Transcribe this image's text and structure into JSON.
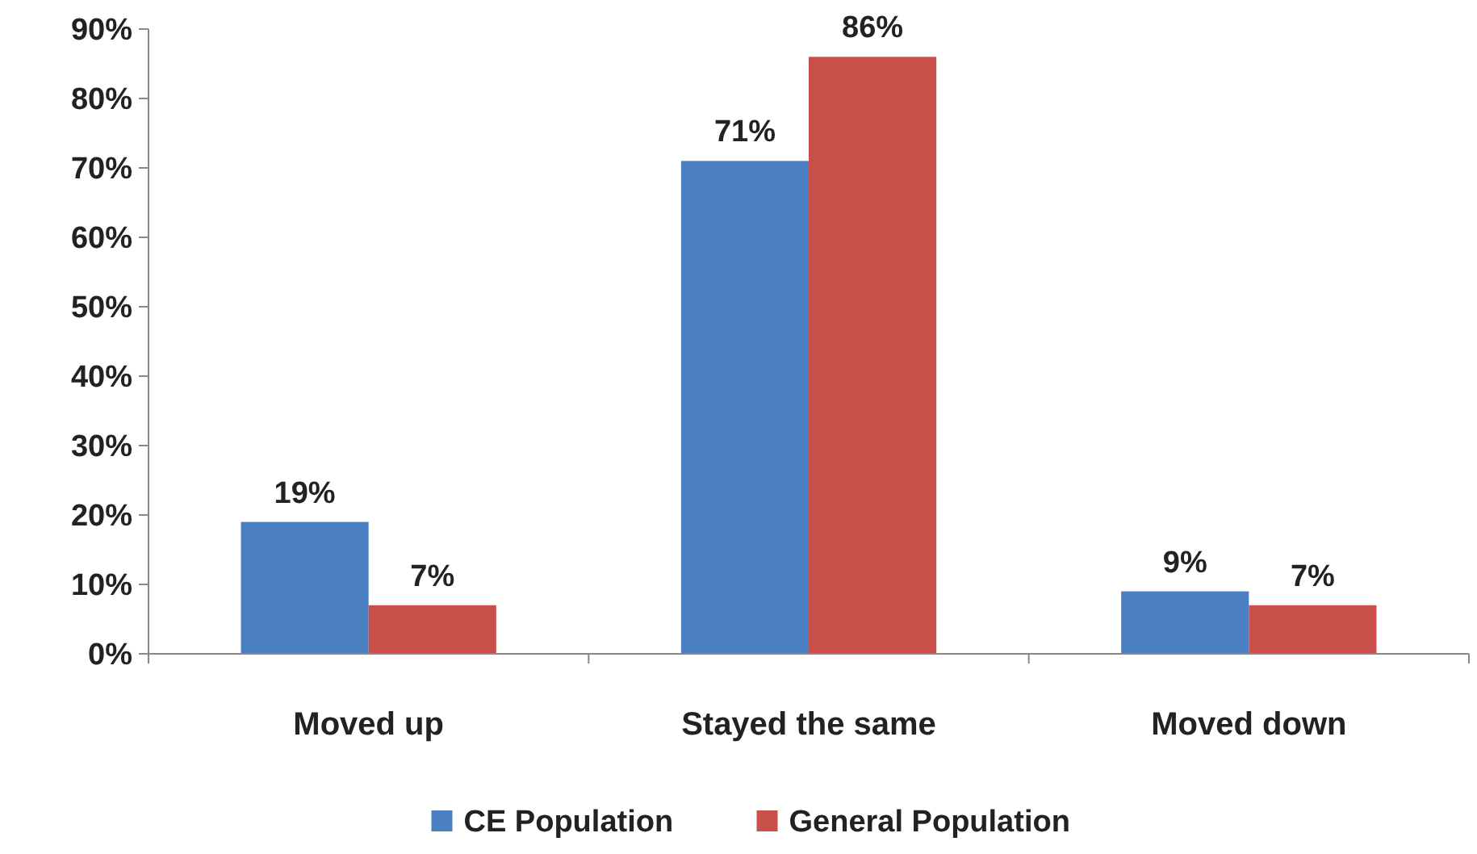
{
  "chart_data": {
    "type": "bar",
    "categories": [
      "Moved up",
      "Stayed the same",
      "Moved down"
    ],
    "series": [
      {
        "name": "CE Population",
        "color": "#4a7fc1",
        "values": [
          19,
          71,
          9
        ],
        "value_labels": [
          "19%",
          "71%",
          "9%"
        ]
      },
      {
        "name": "General Population",
        "color": "#c9504a",
        "values": [
          7,
          86,
          7
        ],
        "value_labels": [
          "7%",
          "86%",
          "7%"
        ]
      }
    ],
    "ylim": [
      0,
      90
    ],
    "yticks": [
      {
        "value": 0,
        "label": "0%"
      },
      {
        "value": 10,
        "label": "10%"
      },
      {
        "value": 20,
        "label": "20%"
      },
      {
        "value": 30,
        "label": "30%"
      },
      {
        "value": 40,
        "label": "40%"
      },
      {
        "value": 50,
        "label": "50%"
      },
      {
        "value": 60,
        "label": "60%"
      },
      {
        "value": 70,
        "label": "70%"
      },
      {
        "value": 80,
        "label": "80%"
      },
      {
        "value": 90,
        "label": "90%"
      }
    ],
    "grid": false,
    "legend": "bottom"
  }
}
